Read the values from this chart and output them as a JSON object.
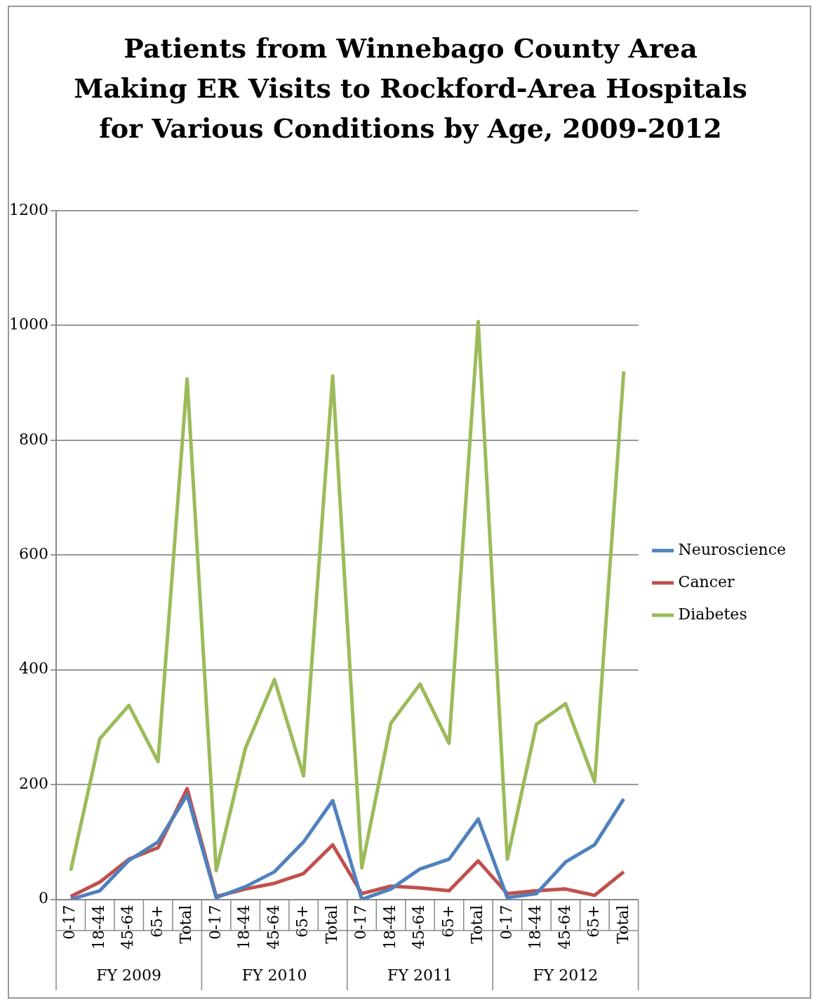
{
  "chart_data": {
    "type": "line",
    "title": "Patients from Winnebago County Area Making ER Visits to Rockford-Area Hospitals for Various Conditions by Age, 2009-2012",
    "categories": [
      "0-17",
      "18-44",
      "45-64",
      "65+",
      "Total",
      "0-17",
      "18-44",
      "45-64",
      "65+",
      "Total",
      "0-17",
      "18-44",
      "45-64",
      "65+",
      "Total",
      "0-17",
      "18-44",
      "45-64",
      "65+",
      "Total"
    ],
    "series": [
      {
        "name": "Neuroscience",
        "color": "#4f81bd",
        "values": [
          0,
          15,
          68,
          100,
          182,
          3,
          22,
          48,
          100,
          172,
          0,
          18,
          53,
          70,
          140,
          3,
          10,
          65,
          95,
          175
        ]
      },
      {
        "name": "Cancer",
        "color": "#c0504d",
        "values": [
          5,
          30,
          70,
          90,
          193,
          5,
          18,
          28,
          45,
          95,
          10,
          23,
          20,
          15,
          67,
          10,
          15,
          18,
          7,
          48
        ]
      },
      {
        "name": "Diabetes",
        "color": "#9bbb59",
        "values": [
          50,
          280,
          338,
          240,
          907,
          50,
          263,
          383,
          215,
          912,
          55,
          307,
          375,
          272,
          1007,
          70,
          305,
          341,
          205,
          920
        ]
      }
    ],
    "ylim": [
      0,
      1200
    ],
    "yticks": [
      0,
      200,
      400,
      600,
      800,
      1000,
      1200
    ],
    "grid": "y",
    "legend": "right",
    "annotations": [
      "FY 2009",
      "FY 2010",
      "FY 2011",
      "FY 2012"
    ]
  }
}
